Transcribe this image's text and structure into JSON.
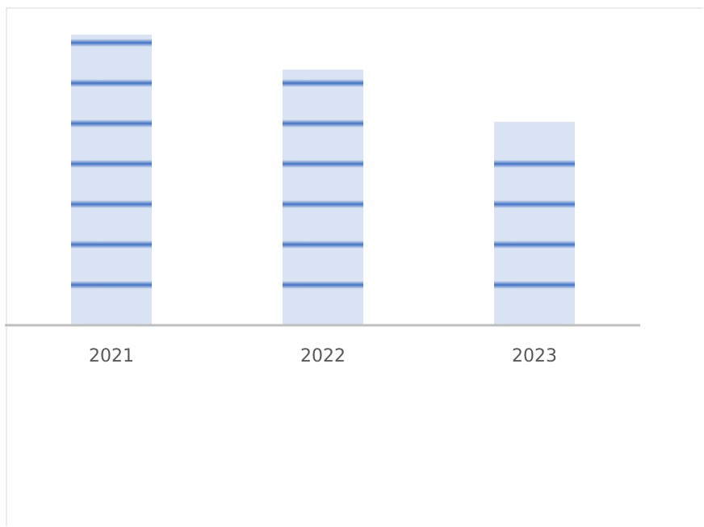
{
  "chart_data": {
    "type": "bar",
    "categories": [
      "2021",
      "2022",
      "2023"
    ],
    "series": [
      {
        "values": [
          100,
          88,
          70
        ]
      }
    ],
    "title": "",
    "xlabel": "",
    "ylabel": "",
    "grid": false,
    "legend": "none",
    "colors": {
      "bar_fill": "#dae3f3",
      "bar_stripe": "#4472c4",
      "axis": "#bfbfbf",
      "frame": "#d9d9d9",
      "tick_text": "#595959"
    }
  }
}
